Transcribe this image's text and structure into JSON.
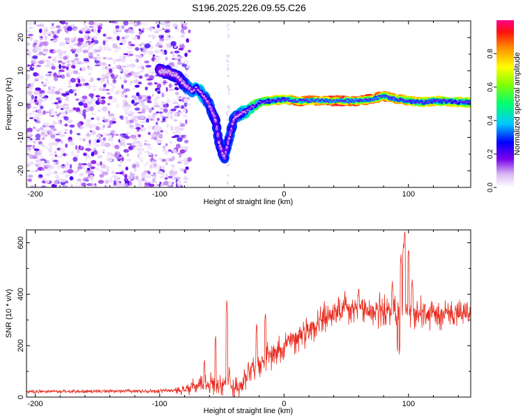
{
  "title": "S196.2025.226.09.55.C26",
  "chart_data": [
    {
      "type": "heatmap",
      "xlabel": "Height of straight line (km)",
      "ylabel": "Frequency (Hz)",
      "xlim": [
        -207,
        150
      ],
      "ylim": [
        -25,
        25
      ],
      "xticks": [
        -200,
        -100,
        0,
        100
      ],
      "yticks": [
        -20,
        -10,
        0,
        10,
        20
      ],
      "colorbar": {
        "label": "Normalized spectral amplitude",
        "range": [
          0,
          1
        ],
        "ticks": [
          0.0,
          0.2,
          0.4,
          0.6,
          0.8
        ]
      },
      "noise_region_x": [
        -207,
        -80
      ],
      "ridge": [
        {
          "x": -100,
          "y": 10
        },
        {
          "x": -92,
          "y": 9.5
        },
        {
          "x": -86,
          "y": 8.5
        },
        {
          "x": -80,
          "y": 6
        },
        {
          "x": -74,
          "y": 4
        },
        {
          "x": -70,
          "y": 5
        },
        {
          "x": -66,
          "y": 3
        },
        {
          "x": -62,
          "y": 1
        },
        {
          "x": -58,
          "y": -2
        },
        {
          "x": -55,
          "y": -5
        },
        {
          "x": -52,
          "y": -12
        },
        {
          "x": -48,
          "y": -16
        },
        {
          "x": -40,
          "y": -4
        },
        {
          "x": -35,
          "y": -3
        },
        {
          "x": -28,
          "y": -1.5
        },
        {
          "x": -20,
          "y": 0.5
        },
        {
          "x": -10,
          "y": 1
        },
        {
          "x": 0,
          "y": 1.5
        },
        {
          "x": 10,
          "y": 1
        },
        {
          "x": 20,
          "y": 1
        },
        {
          "x": 40,
          "y": 1
        },
        {
          "x": 60,
          "y": 1
        },
        {
          "x": 70,
          "y": 1.5
        },
        {
          "x": 80,
          "y": 2.5
        },
        {
          "x": 90,
          "y": 1.5
        },
        {
          "x": 100,
          "y": 1
        },
        {
          "x": 110,
          "y": 0.5
        },
        {
          "x": 120,
          "y": 1
        },
        {
          "x": 135,
          "y": 0.8
        },
        {
          "x": 150,
          "y": 0.5
        }
      ],
      "ridge_amplitude": [
        {
          "x": -100,
          "a": 0.25
        },
        {
          "x": -80,
          "a": 0.3
        },
        {
          "x": -70,
          "a": 0.45
        },
        {
          "x": -55,
          "a": 0.3
        },
        {
          "x": -40,
          "a": 0.35
        },
        {
          "x": -25,
          "a": 0.55
        },
        {
          "x": -10,
          "a": 0.75
        },
        {
          "x": 10,
          "a": 0.9
        },
        {
          "x": 40,
          "a": 1.0
        },
        {
          "x": 60,
          "a": 0.95
        },
        {
          "x": 80,
          "a": 0.9
        },
        {
          "x": 100,
          "a": 0.85
        },
        {
          "x": 120,
          "a": 0.8
        },
        {
          "x": 150,
          "a": 0.75
        }
      ]
    },
    {
      "type": "line",
      "xlabel": "Height of straight line (km)",
      "ylabel": "SNR (10 * v/v)",
      "xlim": [
        -207,
        150
      ],
      "ylim": [
        0,
        650
      ],
      "xticks": [
        -200,
        -100,
        0,
        100
      ],
      "yticks": [
        0,
        200,
        400,
        600
      ],
      "color": "#e8291c",
      "series": [
        {
          "name": "SNR",
          "envelope_mean": [
            {
              "x": -207,
              "y": 22
            },
            {
              "x": -150,
              "y": 22
            },
            {
              "x": -100,
              "y": 24
            },
            {
              "x": -80,
              "y": 28
            },
            {
              "x": -70,
              "y": 45
            },
            {
              "x": -60,
              "y": 55
            },
            {
              "x": -50,
              "y": 55
            },
            {
              "x": -45,
              "y": 40
            },
            {
              "x": -35,
              "y": 40
            },
            {
              "x": -28,
              "y": 110
            },
            {
              "x": -15,
              "y": 150
            },
            {
              "x": 0,
              "y": 200
            },
            {
              "x": 15,
              "y": 250
            },
            {
              "x": 30,
              "y": 300
            },
            {
              "x": 50,
              "y": 340
            },
            {
              "x": 70,
              "y": 340
            },
            {
              "x": 95,
              "y": 330
            },
            {
              "x": 120,
              "y": 320
            },
            {
              "x": 150,
              "y": 320
            }
          ],
          "envelope_spread": [
            {
              "x": -207,
              "y": 8
            },
            {
              "x": -90,
              "y": 10
            },
            {
              "x": -70,
              "y": 40
            },
            {
              "x": -50,
              "y": 60
            },
            {
              "x": -30,
              "y": 60
            },
            {
              "x": 0,
              "y": 70
            },
            {
              "x": 40,
              "y": 80
            },
            {
              "x": 100,
              "y": 80
            },
            {
              "x": 150,
              "y": 60
            }
          ],
          "spikes": [
            {
              "x": -64,
              "y": 150
            },
            {
              "x": -55,
              "y": 240
            },
            {
              "x": -46,
              "y": 375
            },
            {
              "x": -44,
              "y": 120
            },
            {
              "x": -22,
              "y": 290
            },
            {
              "x": -15,
              "y": 330
            },
            {
              "x": 60,
              "y": 430
            },
            {
              "x": 87,
              "y": 450
            },
            {
              "x": 92,
              "y": 130
            },
            {
              "x": 94,
              "y": 555
            },
            {
              "x": 96,
              "y": 600
            },
            {
              "x": 97,
              "y": 650
            },
            {
              "x": 100,
              "y": 580
            },
            {
              "x": 103,
              "y": 460
            }
          ]
        }
      ]
    }
  ]
}
